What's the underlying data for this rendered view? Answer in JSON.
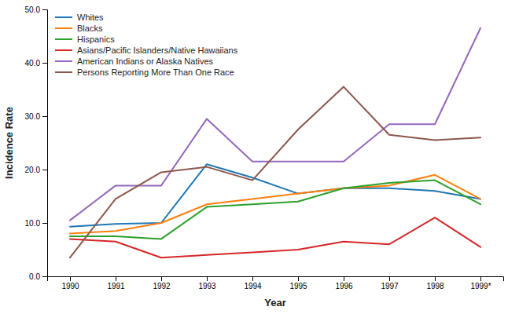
{
  "chart_data": {
    "type": "line",
    "xlabel": "Year",
    "ylabel": "Incidence Rate",
    "x": [
      1990,
      1991,
      1992,
      1993,
      1994,
      1995,
      1996,
      1997,
      1998,
      1999
    ],
    "xlim": [
      1989.5,
      1999.5
    ],
    "xticks": [
      1990,
      1991,
      1992,
      1993,
      1994,
      1995,
      1996,
      1997,
      1998,
      {
        "value": 1999,
        "label": "1999*"
      }
    ],
    "ylim": [
      0.0,
      50.0
    ],
    "yticks": [
      {
        "value": 0.0,
        "label": "0.0"
      },
      {
        "value": 10.0,
        "label": "10.0"
      },
      {
        "value": 20.0,
        "label": "20.0"
      },
      {
        "value": 30.0,
        "label": "30.0"
      },
      {
        "value": 40.0,
        "label": "40.0"
      },
      {
        "value": 50.0,
        "label": "50.0"
      }
    ],
    "grid": false,
    "legend": "upper left",
    "series": [
      {
        "name": "Whites",
        "values": [
          9.3,
          9.8,
          10.0,
          21.0,
          18.5,
          15.5,
          16.5,
          16.5,
          16.0,
          14.5
        ]
      },
      {
        "name": "Blacks",
        "values": [
          8.0,
          8.5,
          10.0,
          13.5,
          14.5,
          15.5,
          16.5,
          17.0,
          19.0,
          14.5
        ]
      },
      {
        "name": "Hispanics",
        "values": [
          7.5,
          7.5,
          7.0,
          13.0,
          13.5,
          14.0,
          16.5,
          17.5,
          18.0,
          13.5
        ]
      },
      {
        "name": "Asians/Pacific Islanders/Native Hawaiians",
        "values": [
          7.0,
          6.5,
          3.5,
          4.0,
          4.5,
          5.0,
          6.5,
          6.0,
          11.0,
          5.5
        ]
      },
      {
        "name": "American Indians or Alaska Natives",
        "values": [
          10.5,
          17.0,
          17.0,
          29.5,
          21.5,
          21.5,
          21.5,
          28.5,
          28.5,
          46.5
        ]
      },
      {
        "name": "Persons Reporting More Than One Race",
        "values": [
          3.5,
          14.5,
          19.5,
          20.5,
          18.0,
          27.5,
          35.5,
          26.5,
          25.5,
          26.0
        ]
      }
    ]
  }
}
